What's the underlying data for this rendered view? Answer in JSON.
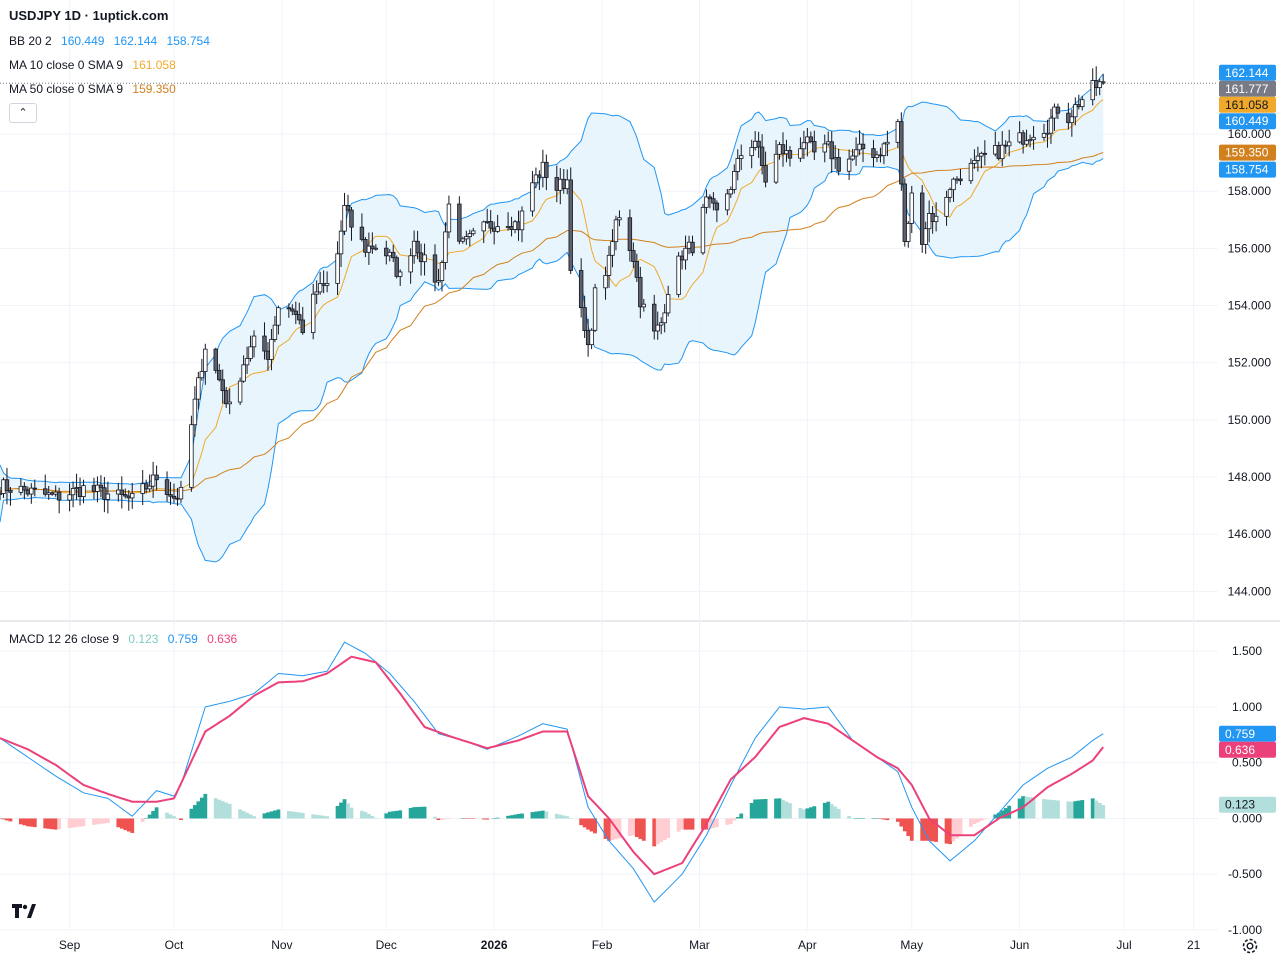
{
  "header": {
    "title": "USDJPY 1D · 1uptick.com"
  },
  "legend": {
    "bb": {
      "label": "BB 20 2",
      "v1": "160.449",
      "v2": "162.144",
      "v3": "158.754"
    },
    "ma10": {
      "label": "MA 10 close 0 SMA 9",
      "value": "161.058"
    },
    "ma50": {
      "label": "MA 50 close 0 SMA 9",
      "value": "159.350"
    },
    "macd": {
      "label": "MACD 12 26 close 9",
      "hist": "0.123",
      "macd": "0.759",
      "signal": "0.636"
    }
  },
  "colors": {
    "up": "#ffffff",
    "down": "#5d606b",
    "wick": "#131722",
    "bb": "#2196f3",
    "bbFill": "#e3f2fd",
    "ma10": "#f0a92b",
    "ma50": "#d2801e",
    "macdLine": "#2196f3",
    "signalLine": "#ec407a",
    "histUpStrong": "#26a69a",
    "histUpWeak": "#b2dfdb",
    "histDownStrong": "#ef5350",
    "histDownWeak": "#ffcdd2",
    "lastPrice": "#787b86"
  },
  "chart_data": [
    {
      "type": "candlestick",
      "title": "USDJPY 1D",
      "ylim": [
        143,
        163.5
      ],
      "yticks": [
        "144.000",
        "146.000",
        "148.000",
        "150.000",
        "152.000",
        "154.000",
        "156.000",
        "158.000",
        "160.000"
      ],
      "price_labels": [
        {
          "text": "162.144",
          "value": 162.144,
          "role": "bb-upper"
        },
        {
          "text": "161.777",
          "value": 161.777,
          "role": "last"
        },
        {
          "text": "161.058",
          "value": 161.058,
          "role": "ma10"
        },
        {
          "text": "160.449",
          "value": 160.449,
          "role": "bb-basis"
        },
        {
          "text": "159.350",
          "value": 159.35,
          "role": "ma50"
        },
        {
          "text": "158.754",
          "value": 158.754,
          "role": "bb-lower"
        }
      ],
      "xlabels": [
        {
          "text": "Sep",
          "date": "2025-09-01"
        },
        {
          "text": "Oct",
          "date": "2025-10-01"
        },
        {
          "text": "Nov",
          "date": "2025-11-01"
        },
        {
          "text": "Dec",
          "date": "2025-12-01"
        },
        {
          "text": "2026",
          "date": "2026-01-01",
          "bold": true
        },
        {
          "text": "Feb",
          "date": "2026-02-01"
        },
        {
          "text": "Mar",
          "date": "2026-03-01"
        },
        {
          "text": "Apr",
          "date": "2026-04-01"
        },
        {
          "text": "May",
          "date": "2026-05-01"
        },
        {
          "text": "Jun",
          "date": "2026-06-01"
        },
        {
          "text": "Jul",
          "date": "2026-07-01"
        },
        {
          "text": "21",
          "date": "2026-07-21"
        }
      ],
      "x_domain": [
        "2025-08-12",
        "2026-07-28"
      ],
      "close_path": [
        [
          "2025-08-12",
          147.7
        ],
        [
          "2025-08-20",
          147.5
        ],
        [
          "2025-08-28",
          147.3
        ],
        [
          "2025-09-05",
          147.6
        ],
        [
          "2025-09-12",
          147.4
        ],
        [
          "2025-09-19",
          147.2
        ],
        [
          "2025-09-26",
          148.0
        ],
        [
          "2025-10-01",
          147.3
        ],
        [
          "2025-10-03",
          147.4
        ],
        [
          "2025-10-07",
          150.6
        ],
        [
          "2025-10-10",
          152.6
        ],
        [
          "2025-10-14",
          151.4
        ],
        [
          "2025-10-17",
          150.4
        ],
        [
          "2025-10-21",
          152.0
        ],
        [
          "2025-10-24",
          152.7
        ],
        [
          "2025-10-28",
          152.3
        ],
        [
          "2025-10-31",
          154.0
        ],
        [
          "2025-11-04",
          153.9
        ],
        [
          "2025-11-07",
          153.2
        ],
        [
          "2025-11-11",
          154.5
        ],
        [
          "2025-11-14",
          154.7
        ],
        [
          "2025-11-17",
          155.8
        ],
        [
          "2025-11-19",
          157.4
        ],
        [
          "2025-11-21",
          156.8
        ],
        [
          "2025-11-25",
          156.0
        ],
        [
          "2025-11-28",
          156.1
        ],
        [
          "2025-12-02",
          155.7
        ],
        [
          "2025-12-05",
          155.0
        ],
        [
          "2025-12-09",
          156.3
        ],
        [
          "2025-12-12",
          155.5
        ],
        [
          "2025-12-16",
          154.8
        ],
        [
          "2025-12-19",
          157.5
        ],
        [
          "2025-12-23",
          156.1
        ],
        [
          "2025-12-26",
          156.4
        ],
        [
          "2025-12-30",
          156.8
        ],
        [
          "2026-01-05",
          157.0
        ],
        [
          "2026-01-08",
          156.8
        ],
        [
          "2026-01-12",
          158.3
        ],
        [
          "2026-01-15",
          158.8
        ],
        [
          "2026-01-19",
          158.1
        ],
        [
          "2026-01-22",
          158.4
        ],
        [
          "2026-01-23",
          155.5
        ],
        [
          "2026-01-26",
          153.7
        ],
        [
          "2026-01-28",
          152.4
        ],
        [
          "2026-01-30",
          154.4
        ],
        [
          "2026-02-03",
          155.5
        ],
        [
          "2026-02-05",
          156.9
        ],
        [
          "2026-02-06",
          157.2
        ],
        [
          "2026-02-10",
          155.7
        ],
        [
          "2026-02-12",
          154.2
        ],
        [
          "2026-02-16",
          153.0
        ],
        [
          "2026-02-18",
          153.4
        ],
        [
          "2026-02-20",
          154.6
        ],
        [
          "2026-02-24",
          155.8
        ],
        [
          "2026-02-27",
          156.1
        ],
        [
          "2026-03-03",
          157.6
        ],
        [
          "2026-03-06",
          157.2
        ],
        [
          "2026-03-10",
          158.2
        ],
        [
          "2026-03-13",
          159.3
        ],
        [
          "2026-03-17",
          159.8
        ],
        [
          "2026-03-20",
          158.4
        ],
        [
          "2026-03-24",
          159.5
        ],
        [
          "2026-03-27",
          159.2
        ],
        [
          "2026-03-31",
          159.8
        ],
        [
          "2026-04-03",
          159.3
        ],
        [
          "2026-04-07",
          159.5
        ],
        [
          "2026-04-10",
          158.9
        ],
        [
          "2026-04-14",
          159.2
        ],
        [
          "2026-04-17",
          159.5
        ],
        [
          "2026-04-21",
          159.3
        ],
        [
          "2026-04-24",
          159.7
        ],
        [
          "2026-04-27",
          160.4
        ],
        [
          "2026-04-29",
          156.1
        ],
        [
          "2026-05-01",
          157.8
        ],
        [
          "2026-05-04",
          156.4
        ],
        [
          "2026-05-06",
          157.2
        ],
        [
          "2026-05-08",
          157.0
        ],
        [
          "2026-05-12",
          158.2
        ],
        [
          "2026-05-15",
          158.6
        ],
        [
          "2026-05-19",
          158.9
        ],
        [
          "2026-05-22",
          159.2
        ],
        [
          "2026-05-26",
          159.4
        ],
        [
          "2026-05-29",
          159.6
        ],
        [
          "2026-06-02",
          159.9
        ],
        [
          "2026-06-05",
          160.1
        ],
        [
          "2026-06-09",
          160.3
        ],
        [
          "2026-06-12",
          160.9
        ],
        [
          "2026-06-15",
          160.6
        ],
        [
          "2026-06-18",
          161.1
        ],
        [
          "2026-06-22",
          161.6
        ],
        [
          "2026-06-25",
          161.8
        ]
      ]
    },
    {
      "type": "macd",
      "title": "MACD 12 26 close 9",
      "ylim": [
        -1.0,
        1.6
      ],
      "yticks": [
        "1.500",
        "1.000",
        "0.500",
        "0.000",
        "-0.500",
        "-1.000"
      ],
      "value_labels": [
        {
          "text": "0.759",
          "value": 0.759,
          "role": "macd"
        },
        {
          "text": "0.636",
          "value": 0.636,
          "role": "signal"
        },
        {
          "text": "0.123",
          "value": 0.123,
          "role": "histogram"
        }
      ],
      "macd_path": [
        [
          "2025-08-12",
          0.72
        ],
        [
          "2025-08-20",
          0.55
        ],
        [
          "2025-08-28",
          0.38
        ],
        [
          "2025-09-05",
          0.23
        ],
        [
          "2025-09-12",
          0.18
        ],
        [
          "2025-09-19",
          0.02
        ],
        [
          "2025-09-26",
          0.25
        ],
        [
          "2025-10-01",
          0.2
        ],
        [
          "2025-10-03",
          0.3
        ],
        [
          "2025-10-10",
          1.0
        ],
        [
          "2025-10-17",
          1.05
        ],
        [
          "2025-10-24",
          1.12
        ],
        [
          "2025-10-31",
          1.3
        ],
        [
          "2025-11-07",
          1.28
        ],
        [
          "2025-11-14",
          1.32
        ],
        [
          "2025-11-19",
          1.58
        ],
        [
          "2025-11-25",
          1.48
        ],
        [
          "2025-12-02",
          1.3
        ],
        [
          "2025-12-09",
          1.05
        ],
        [
          "2025-12-16",
          0.76
        ],
        [
          "2025-12-23",
          0.7
        ],
        [
          "2025-12-30",
          0.62
        ],
        [
          "2026-01-08",
          0.74
        ],
        [
          "2026-01-15",
          0.85
        ],
        [
          "2026-01-22",
          0.8
        ],
        [
          "2026-01-28",
          0.1
        ],
        [
          "2026-02-03",
          -0.2
        ],
        [
          "2026-02-10",
          -0.45
        ],
        [
          "2026-02-16",
          -0.75
        ],
        [
          "2026-02-24",
          -0.5
        ],
        [
          "2026-03-03",
          -0.15
        ],
        [
          "2026-03-10",
          0.3
        ],
        [
          "2026-03-17",
          0.72
        ],
        [
          "2026-03-24",
          1.0
        ],
        [
          "2026-03-31",
          0.98
        ],
        [
          "2026-04-07",
          1.0
        ],
        [
          "2026-04-14",
          0.7
        ],
        [
          "2026-04-21",
          0.55
        ],
        [
          "2026-04-27",
          0.42
        ],
        [
          "2026-05-01",
          0.1
        ],
        [
          "2026-05-06",
          -0.2
        ],
        [
          "2026-05-12",
          -0.38
        ],
        [
          "2026-05-19",
          -0.2
        ],
        [
          "2026-05-26",
          0.05
        ],
        [
          "2026-06-02",
          0.3
        ],
        [
          "2026-06-09",
          0.45
        ],
        [
          "2026-06-16",
          0.55
        ],
        [
          "2026-06-22",
          0.7
        ],
        [
          "2026-06-25",
          0.76
        ]
      ],
      "signal_path": [
        [
          "2025-08-12",
          0.72
        ],
        [
          "2025-08-20",
          0.62
        ],
        [
          "2025-08-28",
          0.48
        ],
        [
          "2025-09-05",
          0.3
        ],
        [
          "2025-09-12",
          0.22
        ],
        [
          "2025-09-19",
          0.15
        ],
        [
          "2025-09-26",
          0.15
        ],
        [
          "2025-10-01",
          0.18
        ],
        [
          "2025-10-10",
          0.78
        ],
        [
          "2025-10-17",
          0.92
        ],
        [
          "2025-10-24",
          1.1
        ],
        [
          "2025-10-31",
          1.22
        ],
        [
          "2025-11-07",
          1.23
        ],
        [
          "2025-11-14",
          1.3
        ],
        [
          "2025-11-21",
          1.45
        ],
        [
          "2025-11-28",
          1.4
        ],
        [
          "2025-12-05",
          1.12
        ],
        [
          "2025-12-12",
          0.82
        ],
        [
          "2025-12-19",
          0.74
        ],
        [
          "2025-12-30",
          0.63
        ],
        [
          "2026-01-08",
          0.7
        ],
        [
          "2026-01-15",
          0.78
        ],
        [
          "2026-01-22",
          0.78
        ],
        [
          "2026-01-28",
          0.2
        ],
        [
          "2026-02-03",
          0.0
        ],
        [
          "2026-02-10",
          -0.3
        ],
        [
          "2026-02-16",
          -0.5
        ],
        [
          "2026-02-24",
          -0.4
        ],
        [
          "2026-03-03",
          -0.05
        ],
        [
          "2026-03-10",
          0.35
        ],
        [
          "2026-03-17",
          0.55
        ],
        [
          "2026-03-24",
          0.82
        ],
        [
          "2026-03-31",
          0.9
        ],
        [
          "2026-04-07",
          0.85
        ],
        [
          "2026-04-14",
          0.7
        ],
        [
          "2026-04-21",
          0.55
        ],
        [
          "2026-04-27",
          0.45
        ],
        [
          "2026-05-01",
          0.3
        ],
        [
          "2026-05-06",
          0.0
        ],
        [
          "2026-05-12",
          -0.15
        ],
        [
          "2026-05-19",
          -0.15
        ],
        [
          "2026-05-26",
          0.0
        ],
        [
          "2026-06-02",
          0.1
        ],
        [
          "2026-06-09",
          0.28
        ],
        [
          "2026-06-16",
          0.4
        ],
        [
          "2026-06-22",
          0.52
        ],
        [
          "2026-06-25",
          0.64
        ]
      ]
    }
  ]
}
